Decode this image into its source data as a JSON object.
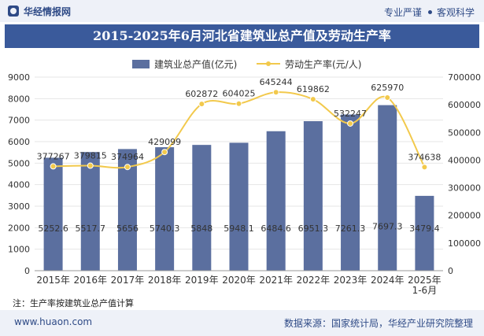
{
  "header": {
    "brand": "华经情报网",
    "tag1": "专业严谨",
    "tag2": "客观科学"
  },
  "chart_data": {
    "type": "bar",
    "title": "2015-2025年6月河北省建筑业总产值及劳动生产率",
    "categories": [
      "2015年",
      "2016年",
      "2017年",
      "2018年",
      "2019年",
      "2020年",
      "2021年",
      "2022年",
      "2023年",
      "2024年",
      "2025年\n1-6月"
    ],
    "series": [
      {
        "name": "建筑业总产值(亿元)",
        "type": "bar",
        "axis": "left",
        "color": "#5b6f9f",
        "values": [
          5252.6,
          5517.7,
          5656,
          5740.3,
          5848,
          5948.1,
          6484.6,
          6951.3,
          7261.3,
          7697.3,
          3479.4
        ],
        "labels": [
          "5252.6",
          "5517.7",
          "5656",
          "5740.3",
          "5848",
          "5948.1",
          "6484.6",
          "6951.3",
          "7261.3",
          "7697.3",
          "3479.4"
        ]
      },
      {
        "name": "劳动生产率(元/人)",
        "type": "line",
        "axis": "right",
        "color": "#f2c94c",
        "values": [
          377267,
          379815,
          374964,
          429099,
          602872,
          604025,
          645244,
          619862,
          532247,
          625970,
          374638
        ],
        "labels": [
          "377267",
          "379815",
          "374964",
          "429099",
          "602872",
          "604025",
          "645244",
          "619862",
          "532247",
          "625970",
          "374638"
        ]
      }
    ],
    "yleft": {
      "min": 0,
      "max": 9000,
      "ticks": [
        "0",
        "1000",
        "2000",
        "3000",
        "4000",
        "5000",
        "6000",
        "7000",
        "8000",
        "9000"
      ]
    },
    "yright": {
      "min": 0,
      "max": 700000,
      "ticks": [
        "0",
        "100000",
        "200000",
        "300000",
        "400000",
        "500000",
        "600000",
        "700000"
      ]
    },
    "legend_position": "top-center"
  },
  "note": "注：生产率按建筑业总产值计算",
  "footer": {
    "url": "www.huaon.com",
    "source": "数据来源：国家统计局，华经产业研究院整理"
  }
}
